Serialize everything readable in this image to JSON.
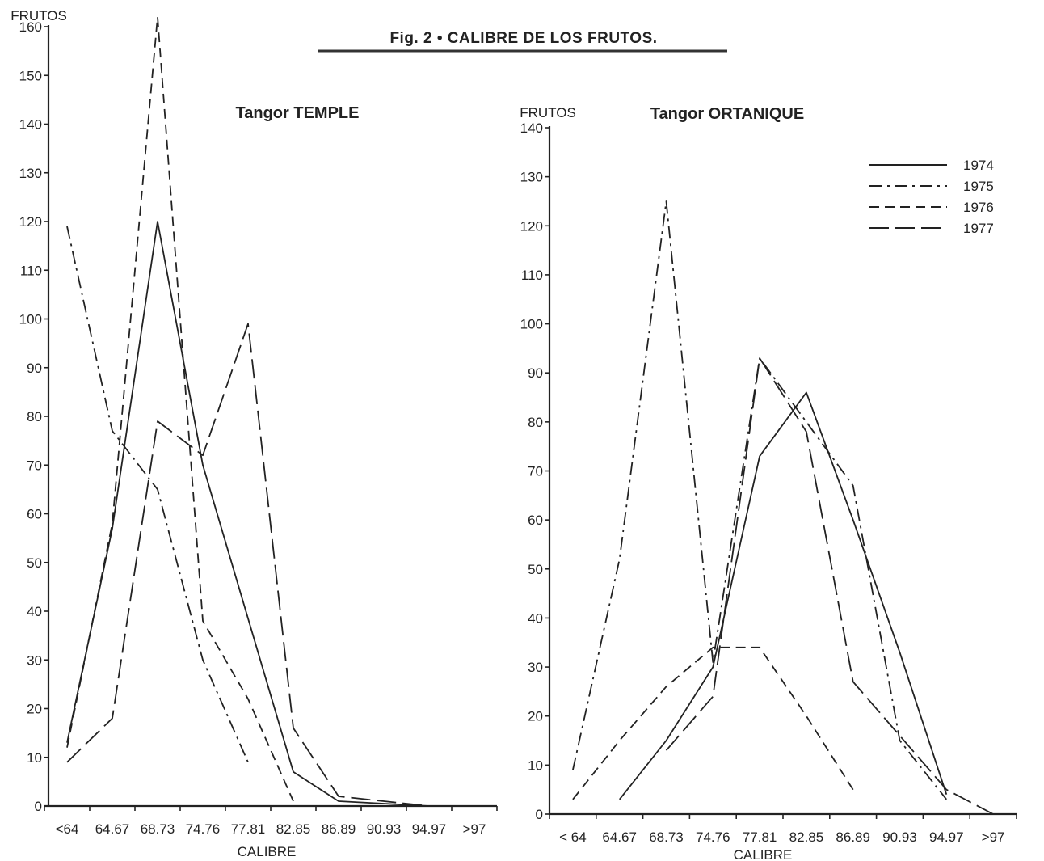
{
  "figure_title": "Fig. 2 • CALIBRE DE LOS FRUTOS.",
  "chart_data": [
    {
      "type": "line",
      "title": "Tangor TEMPLE",
      "ylabel": "FRUTOS",
      "xlabel": "CALIBRE",
      "ylim": [
        0,
        160
      ],
      "yticks": [
        0,
        10,
        20,
        30,
        40,
        50,
        60,
        70,
        80,
        90,
        100,
        110,
        120,
        130,
        140,
        150,
        160
      ],
      "categories": [
        "<64",
        "64.67",
        "68.73",
        "74.76",
        "77.81",
        "82.85",
        "86.89",
        "90.93",
        "94.97",
        ">97"
      ],
      "grid": false,
      "series": [
        {
          "name": "1974",
          "dash": "solid",
          "points": [
            [
              0.5,
              13
            ],
            [
              1.5,
              57
            ],
            [
              2.5,
              120
            ],
            [
              3.5,
              70
            ],
            [
              5.5,
              7
            ],
            [
              6.5,
              1
            ],
            [
              7.5,
              0.5
            ],
            [
              8.5,
              0
            ]
          ]
        },
        {
          "name": "1975",
          "dash": "dashdot",
          "points": [
            [
              0.5,
              119
            ],
            [
              1.5,
              77
            ],
            [
              2.5,
              65
            ],
            [
              3.5,
              30
            ],
            [
              4.5,
              9
            ]
          ]
        },
        {
          "name": "1976",
          "dash": "dashed",
          "points": [
            [
              0.5,
              12
            ],
            [
              1.5,
              58
            ],
            [
              2.5,
              162
            ],
            [
              3.5,
              38
            ],
            [
              4.5,
              22
            ],
            [
              5.5,
              1
            ]
          ]
        },
        {
          "name": "1977",
          "dash": "longdash",
          "points": [
            [
              0.5,
              9
            ],
            [
              1.5,
              18
            ],
            [
              2.5,
              79
            ],
            [
              3.5,
              72
            ],
            [
              4.5,
              99
            ],
            [
              5.5,
              16
            ],
            [
              6.5,
              2
            ],
            [
              7.5,
              1
            ],
            [
              8.5,
              0
            ]
          ]
        }
      ]
    },
    {
      "type": "line",
      "title": "Tangor ORTANIQUE",
      "ylabel": "FRUTOS",
      "xlabel": "CALIBRE",
      "ylim": [
        0,
        140
      ],
      "yticks": [
        0,
        10,
        20,
        30,
        40,
        50,
        60,
        70,
        80,
        90,
        100,
        110,
        120,
        130,
        140
      ],
      "categories": [
        "< 64",
        "64.67",
        "68.73",
        "74.76",
        "77.81",
        "82.85",
        "86.89",
        "90.93",
        "94.97",
        ">97"
      ],
      "grid": false,
      "legend": "top-right",
      "series": [
        {
          "name": "1974",
          "dash": "solid",
          "points": [
            [
              1.5,
              3
            ],
            [
              2.5,
              15
            ],
            [
              3.5,
              30
            ],
            [
              4.5,
              73
            ],
            [
              5.5,
              86
            ],
            [
              6.5,
              60
            ],
            [
              7.5,
              33
            ],
            [
              8.5,
              4
            ]
          ]
        },
        {
          "name": "1975",
          "dash": "dashdot",
          "points": [
            [
              0.5,
              9
            ],
            [
              1.5,
              52
            ],
            [
              2.5,
              125
            ],
            [
              3.5,
              31
            ],
            [
              4.5,
              93
            ],
            [
              5.5,
              80
            ],
            [
              6.5,
              67
            ],
            [
              7.5,
              15
            ],
            [
              8.5,
              3
            ]
          ]
        },
        {
          "name": "1976",
          "dash": "dashed",
          "points": [
            [
              0.5,
              3
            ],
            [
              1.5,
              15
            ],
            [
              2.5,
              26
            ],
            [
              3.5,
              34
            ],
            [
              4.5,
              34
            ],
            [
              5.5,
              20
            ],
            [
              6.5,
              5
            ]
          ]
        },
        {
          "name": "1977",
          "dash": "longdash",
          "points": [
            [
              2.5,
              13
            ],
            [
              3.5,
              24
            ],
            [
              4.5,
              93
            ],
            [
              5.5,
              78
            ],
            [
              6.5,
              27
            ],
            [
              7.5,
              16
            ],
            [
              8.5,
              5
            ],
            [
              9.5,
              0
            ]
          ]
        }
      ]
    }
  ],
  "colors": {
    "line": "#222222",
    "background": "#ffffff"
  }
}
